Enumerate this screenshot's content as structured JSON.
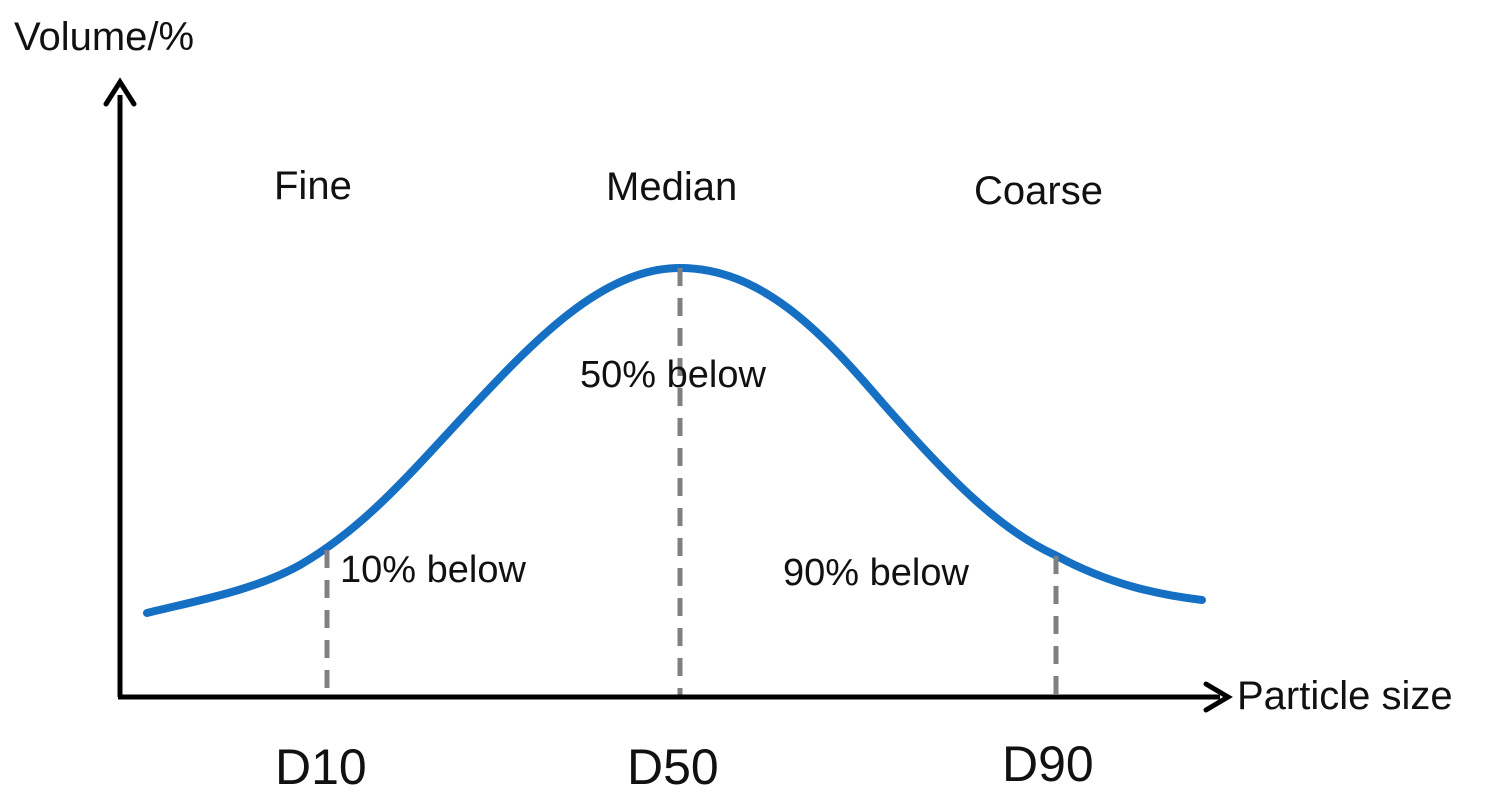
{
  "colors": {
    "curve": "#1570C4",
    "axis": "#000000",
    "dashed_line": "#808080",
    "text": "#111111"
  },
  "axes": {
    "y_label": "Volume/%",
    "x_label": "Particle size"
  },
  "regions": {
    "fine": "Fine",
    "median": "Median",
    "coarse": "Coarse"
  },
  "markers": [
    {
      "name": "D10",
      "note": "10% below"
    },
    {
      "name": "D50",
      "note": "50% below"
    },
    {
      "name": "D90",
      "note": "90% below"
    }
  ],
  "icons": {
    "y_arrow": "arrow-up-icon",
    "x_arrow": "arrow-right-icon"
  }
}
